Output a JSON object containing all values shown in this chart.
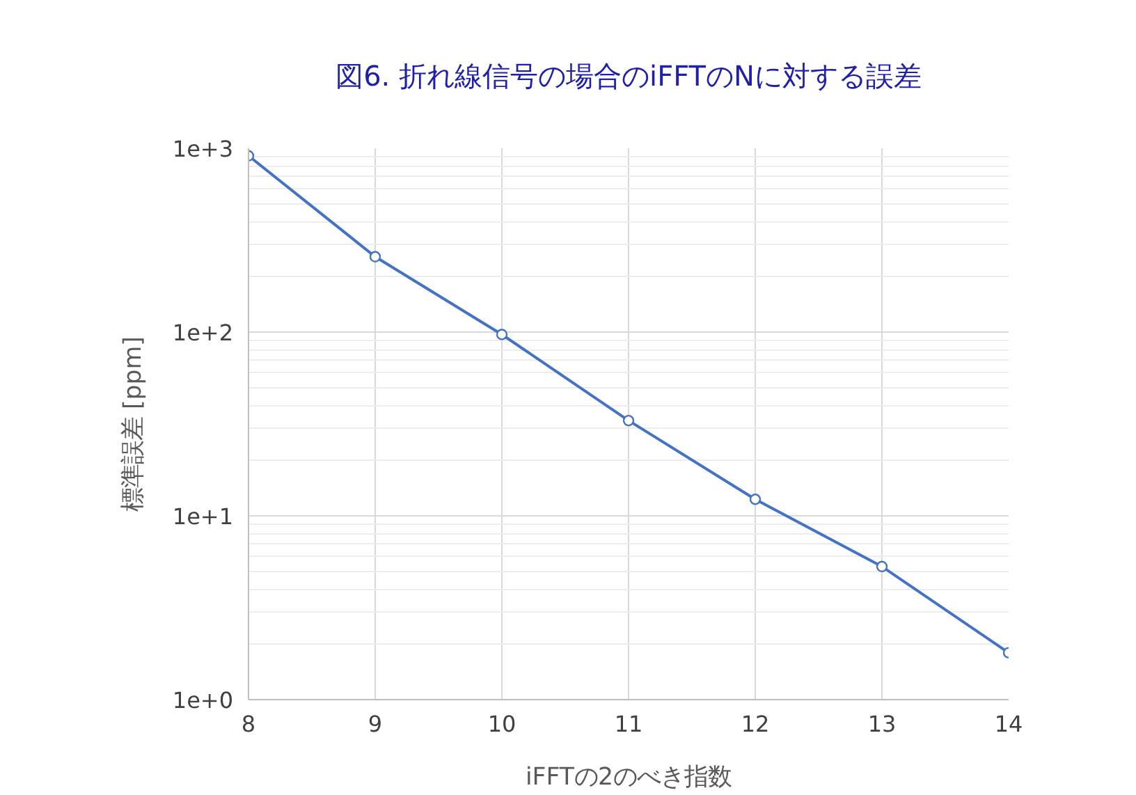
{
  "chart_data": {
    "type": "line",
    "title": "図6. 折れ線信号の場合のiFFTのNに対する誤差",
    "xlabel": "iFFTの2のべき指数",
    "ylabel": "標準誤差 [ppm]",
    "x": [
      8,
      9,
      10,
      11,
      12,
      13,
      14
    ],
    "series": [
      {
        "color": "#4472c4",
        "values": [
          910,
          257,
          97,
          33,
          12.3,
          5.3,
          1.8
        ]
      }
    ],
    "xlim": [
      8,
      14
    ],
    "xticks": [
      8,
      9,
      10,
      11,
      12,
      13,
      14
    ],
    "ylim": [
      1,
      1000
    ],
    "yticks": [
      {
        "value": 1,
        "label": "1e+0"
      },
      {
        "value": 10,
        "label": "1e+1"
      },
      {
        "value": 100,
        "label": "1e+2"
      },
      {
        "value": 1000,
        "label": "1e+3"
      }
    ],
    "log": "y",
    "grid": true,
    "marker": "circle"
  }
}
